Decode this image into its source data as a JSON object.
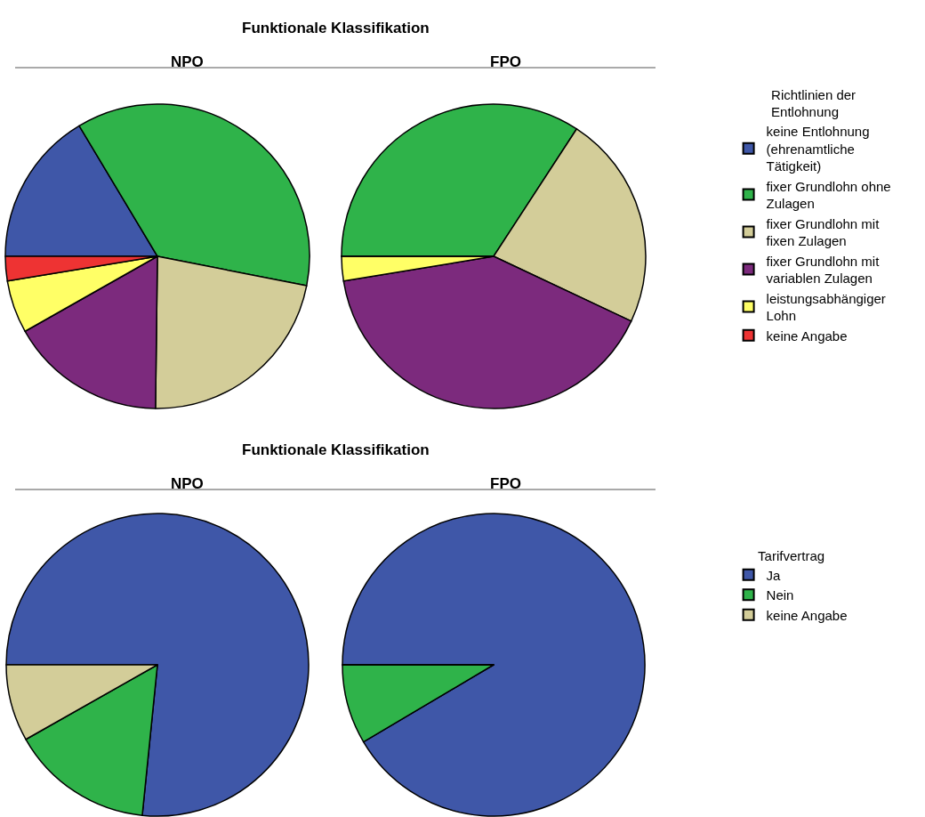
{
  "chart_data": [
    {
      "type": "pie",
      "title": "Funktionale Klassifikation",
      "legend_title": "Richtlinien der Entlohnung",
      "legend": "right",
      "categories": [
        "keine Entlohnung (ehrenamtliche Tätigkeit)",
        "fixer Grundlohn ohne Zulagen",
        "fixer Grundlohn mit fixen Zulagen",
        "fixer Grundlohn mit variablen Zulagen",
        "leistungsabhängiger Lohn",
        "keine Angabe"
      ],
      "colors": [
        "#3f57a8",
        "#2fb34a",
        "#d3cd99",
        "#7c2a7d",
        "#ffff66",
        "#ee3333"
      ],
      "series": [
        {
          "name": "NPO",
          "values": [
            16.4,
            36.7,
            22.1,
            16.6,
            5.6,
            2.6
          ]
        },
        {
          "name": "FPO",
          "values": [
            0,
            34.2,
            22.8,
            40.4,
            2.6,
            0
          ]
        }
      ]
    },
    {
      "type": "pie",
      "title": "Funktionale Klassifikation",
      "legend_title": "Tarifvertrag",
      "legend": "right",
      "categories": [
        "Ja",
        "Nein",
        "keine Angabe"
      ],
      "colors": [
        "#3f57a8",
        "#2fb34a",
        "#d3cd99"
      ],
      "series": [
        {
          "name": "NPO",
          "values": [
            76.6,
            15.2,
            8.2
          ]
        },
        {
          "name": "FPO",
          "values": [
            91.5,
            8.5,
            0
          ]
        }
      ]
    }
  ]
}
